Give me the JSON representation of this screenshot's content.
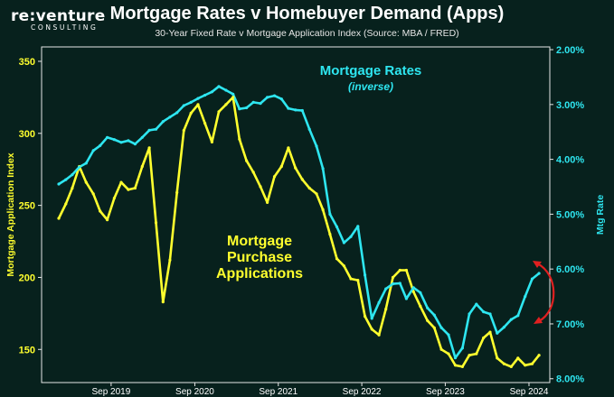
{
  "logo": {
    "main": "re:venture",
    "sub": "CONSULTING"
  },
  "header": {
    "title": "Mortgage Rates v Homebuyer Demand (Apps)",
    "subtitle": "30-Year Fixed Rate v Mortgage Application Index (Source: MBA / FRED)"
  },
  "chart_data": {
    "type": "line",
    "xlabel": "",
    "y_left_label": "Mortgage Application Index",
    "y_right_label": "Mtg Rate",
    "y_left_ticks": [
      "150",
      "200",
      "250",
      "300",
      "350"
    ],
    "y_right_ticks": [
      "2.00%",
      "3.00%",
      "4.00%",
      "5.00%",
      "6.00%",
      "7.00%",
      "8.00%"
    ],
    "x_ticks": [
      "Sep 2019",
      "Sep 2020",
      "Sep 2021",
      "Sep 2022",
      "Sep 2023",
      "Sep 2024"
    ],
    "y_left_range": [
      127,
      360
    ],
    "y_right_range": [
      8.07,
      1.95
    ],
    "y_right_inverted": true,
    "grid": false,
    "annotations": [
      {
        "text": "Mortgage Rates",
        "color": "#2ee6f0"
      },
      {
        "text": "(inverse)",
        "color": "#2ee6f0"
      },
      {
        "text": "Mortgage Purchase Applications",
        "color": "#ffff2e"
      }
    ],
    "series": [
      {
        "name": "Mortgage Rates",
        "axis": "right",
        "color": "#2ee6f0",
        "x": [
          "2019-01-15",
          "2019-02-15",
          "2019-03-15",
          "2019-04-15",
          "2019-05-15",
          "2019-06-15",
          "2019-07-15",
          "2019-08-15",
          "2019-09-15",
          "2019-10-15",
          "2019-11-15",
          "2019-12-15",
          "2020-01-15",
          "2020-02-15",
          "2020-03-15",
          "2020-04-15",
          "2020-05-15",
          "2020-06-15",
          "2020-07-15",
          "2020-08-15",
          "2020-09-15",
          "2020-10-15",
          "2020-11-15",
          "2020-12-15",
          "2021-01-15",
          "2021-02-15",
          "2021-03-15",
          "2021-04-15",
          "2021-05-15",
          "2021-06-15",
          "2021-07-15",
          "2021-08-15",
          "2021-09-15",
          "2021-10-15",
          "2021-11-15",
          "2021-12-15",
          "2022-01-15",
          "2022-02-15",
          "2022-03-15",
          "2022-04-15",
          "2022-05-15",
          "2022-06-15",
          "2022-07-15",
          "2022-08-15",
          "2022-09-15",
          "2022-10-15",
          "2022-11-15",
          "2022-12-15",
          "2023-01-15",
          "2023-02-15",
          "2023-03-15",
          "2023-04-15",
          "2023-05-15",
          "2023-06-15",
          "2023-07-15",
          "2023-08-15",
          "2023-09-15",
          "2023-10-15",
          "2023-11-15",
          "2023-12-15",
          "2024-01-15",
          "2024-02-15",
          "2024-03-15",
          "2024-04-15",
          "2024-05-15",
          "2024-06-15",
          "2024-07-15",
          "2024-08-15",
          "2024-09-15",
          "2024-10-15"
        ],
        "values": [
          4.45,
          4.37,
          4.28,
          4.14,
          4.07,
          3.84,
          3.75,
          3.6,
          3.64,
          3.69,
          3.66,
          3.72,
          3.6,
          3.47,
          3.45,
          3.31,
          3.23,
          3.15,
          3.02,
          2.96,
          2.89,
          2.83,
          2.77,
          2.67,
          2.74,
          2.81,
          3.08,
          3.06,
          2.96,
          2.98,
          2.87,
          2.84,
          2.9,
          3.07,
          3.1,
          3.11,
          3.45,
          3.76,
          4.17,
          5.0,
          5.23,
          5.52,
          5.41,
          5.22,
          6.11,
          6.9,
          6.61,
          6.36,
          6.27,
          6.26,
          6.54,
          6.34,
          6.43,
          6.71,
          6.84,
          7.07,
          7.2,
          7.62,
          7.44,
          6.82,
          6.64,
          6.78,
          6.82,
          7.17,
          7.06,
          6.92,
          6.85,
          6.5,
          6.18,
          6.08
        ]
      },
      {
        "name": "Mortgage Purchase Applications",
        "axis": "left",
        "color": "#ffff2e",
        "x": [
          "2019-01-15",
          "2019-02-15",
          "2019-03-15",
          "2019-04-15",
          "2019-05-15",
          "2019-06-15",
          "2019-07-15",
          "2019-08-15",
          "2019-09-15",
          "2019-10-15",
          "2019-11-15",
          "2019-12-15",
          "2020-01-15",
          "2020-02-15",
          "2020-03-15",
          "2020-04-15",
          "2020-05-15",
          "2020-06-15",
          "2020-07-15",
          "2020-08-15",
          "2020-09-15",
          "2020-10-15",
          "2020-11-15",
          "2020-12-15",
          "2021-01-15",
          "2021-02-15",
          "2021-03-15",
          "2021-04-15",
          "2021-05-15",
          "2021-06-15",
          "2021-07-15",
          "2021-08-15",
          "2021-09-15",
          "2021-10-15",
          "2021-11-15",
          "2021-12-15",
          "2022-01-15",
          "2022-02-15",
          "2022-03-15",
          "2022-04-15",
          "2022-05-15",
          "2022-06-15",
          "2022-07-15",
          "2022-08-15",
          "2022-09-15",
          "2022-10-15",
          "2022-11-15",
          "2022-12-15",
          "2023-01-15",
          "2023-02-15",
          "2023-03-15",
          "2023-04-15",
          "2023-05-15",
          "2023-06-15",
          "2023-07-15",
          "2023-08-15",
          "2023-09-15",
          "2023-10-15",
          "2023-11-15",
          "2023-12-15",
          "2024-01-15",
          "2024-02-15",
          "2024-03-15",
          "2024-04-15",
          "2024-05-15",
          "2024-06-15",
          "2024-07-15",
          "2024-08-15",
          "2024-09-15",
          "2024-10-15"
        ],
        "values": [
          241,
          251,
          262,
          277,
          266,
          258,
          246,
          240,
          255,
          266,
          261,
          262,
          277,
          290,
          238,
          183,
          212,
          259,
          302,
          314,
          320,
          307,
          294,
          315,
          320,
          325,
          296,
          281,
          273,
          263,
          252,
          270,
          277,
          290,
          276,
          268,
          262,
          258,
          247,
          230,
          213,
          208,
          199,
          198,
          173,
          164,
          160,
          178,
          200,
          205,
          205,
          190,
          180,
          170,
          165,
          150,
          147,
          139,
          138,
          146,
          147,
          158,
          162,
          144,
          140,
          138,
          144,
          139,
          140,
          146
        ]
      }
    ]
  }
}
